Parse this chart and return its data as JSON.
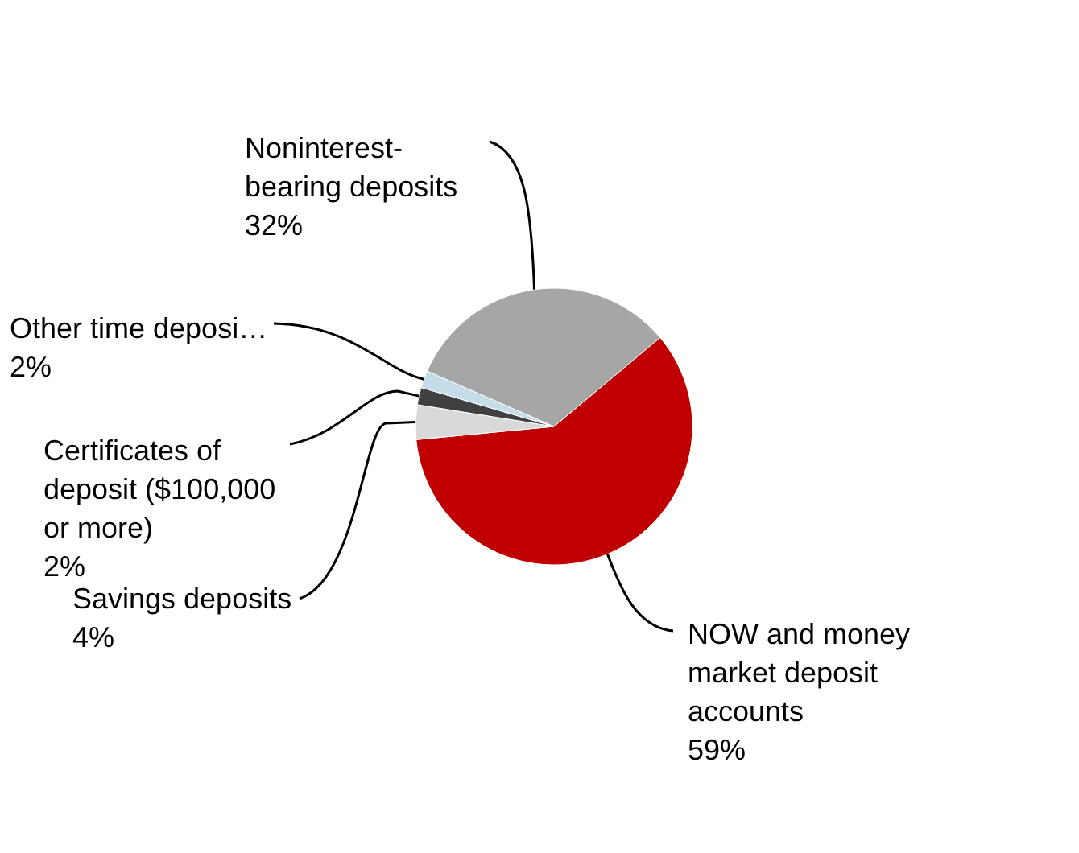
{
  "chart_data": {
    "type": "pie",
    "categories": [
      "NOW and money market deposit accounts",
      "Savings deposits",
      "Certificates of deposit ($100,000 or more)",
      "Other time deposi…",
      "Noninterest-bearing deposits"
    ],
    "values": [
      59,
      4,
      2,
      2,
      32
    ],
    "colors": [
      "#c00000",
      "#d9d9d9",
      "#404040",
      "#c5dde8",
      "#a6a6a6"
    ],
    "value_labels": [
      "59%",
      "4%",
      "2%",
      "2%",
      "32%"
    ]
  }
}
